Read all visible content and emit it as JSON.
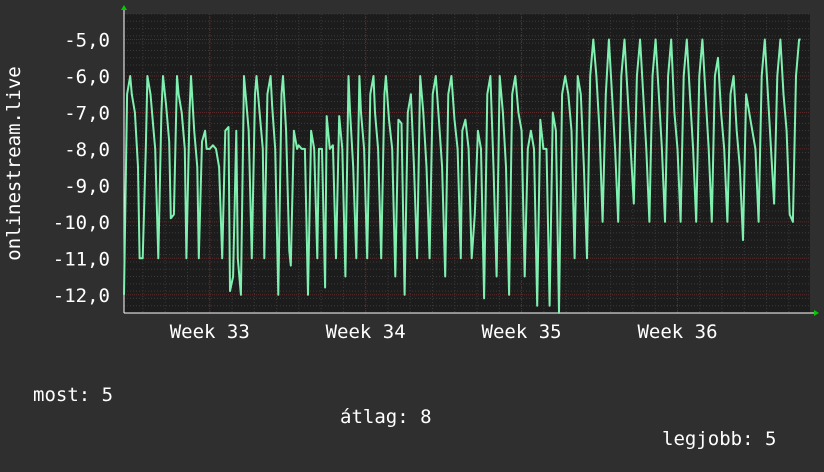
{
  "chart_data": {
    "type": "line",
    "ylabel": "onlinestream.live",
    "ylim": [
      -12.5,
      -4.3
    ],
    "yticks": [
      -12,
      -11,
      -10,
      -9,
      -8,
      -7,
      -6,
      -5
    ],
    "ytick_labels": [
      "-12,0",
      "-11,0",
      "-10,0",
      "-9,0",
      "-8,0",
      "-7,0",
      "-6,0",
      "-5,0"
    ],
    "xlim": [
      32.45,
      36.85
    ],
    "xticks": [
      33,
      34,
      35,
      36
    ],
    "xtick_labels": [
      "Week 33",
      "Week 34",
      "Week 35",
      "Week 36"
    ],
    "grid": true,
    "colors": {
      "background": "#2f2f2f",
      "plot_area": "#1c1c1c",
      "line": "#80f0b0",
      "grid_major": "#5a2a2a",
      "grid_minor": "#3a3a3a",
      "axis": "#ffffff",
      "arrow": "#00cc00"
    },
    "series": [
      {
        "points": [
          [
            32.45,
            -12.0
          ],
          [
            32.47,
            -6.5
          ],
          [
            32.49,
            -6.0
          ],
          [
            32.5,
            -6.5
          ],
          [
            32.52,
            -7.0
          ],
          [
            32.54,
            -8.5
          ],
          [
            32.55,
            -11.0
          ],
          [
            32.57,
            -11.0
          ],
          [
            32.59,
            -8.0
          ],
          [
            32.6,
            -6.0
          ],
          [
            32.62,
            -6.5
          ],
          [
            32.64,
            -7.5
          ],
          [
            32.65,
            -8.0
          ],
          [
            32.67,
            -11.0
          ],
          [
            32.69,
            -7.0
          ],
          [
            32.7,
            -6.0
          ],
          [
            32.72,
            -6.8
          ],
          [
            32.74,
            -7.8
          ],
          [
            32.75,
            -9.9
          ],
          [
            32.77,
            -9.8
          ],
          [
            32.79,
            -6.0
          ],
          [
            32.8,
            -6.5
          ],
          [
            32.82,
            -7.0
          ],
          [
            32.84,
            -8.0
          ],
          [
            32.85,
            -11.0
          ],
          [
            32.87,
            -7.0
          ],
          [
            32.88,
            -6.0
          ],
          [
            32.9,
            -7.5
          ],
          [
            32.92,
            -8.5
          ],
          [
            32.93,
            -11.0
          ],
          [
            32.95,
            -7.8
          ],
          [
            32.97,
            -7.5
          ],
          [
            32.98,
            -8.0
          ],
          [
            33.0,
            -8.0
          ],
          [
            33.02,
            -7.9
          ],
          [
            33.04,
            -8.0
          ],
          [
            33.06,
            -8.5
          ],
          [
            33.08,
            -11.0
          ],
          [
            33.1,
            -7.5
          ],
          [
            33.12,
            -7.4
          ],
          [
            33.13,
            -11.9
          ],
          [
            33.15,
            -11.5
          ],
          [
            33.17,
            -7.5
          ],
          [
            33.18,
            -11.0
          ],
          [
            33.2,
            -12.0
          ],
          [
            33.22,
            -6.0
          ],
          [
            33.23,
            -6.5
          ],
          [
            33.25,
            -7.5
          ],
          [
            33.27,
            -11.0
          ],
          [
            33.29,
            -6.5
          ],
          [
            33.3,
            -6.0
          ],
          [
            33.32,
            -7.0
          ],
          [
            33.34,
            -8.0
          ],
          [
            33.35,
            -11.0
          ],
          [
            33.37,
            -6.5
          ],
          [
            33.39,
            -6.0
          ],
          [
            33.4,
            -6.8
          ],
          [
            33.42,
            -8.0
          ],
          [
            33.44,
            -12.0
          ],
          [
            33.46,
            -6.5
          ],
          [
            33.47,
            -6.0
          ],
          [
            33.49,
            -7.5
          ],
          [
            33.51,
            -10.8
          ],
          [
            33.52,
            -11.2
          ],
          [
            33.54,
            -7.5
          ],
          [
            33.56,
            -8.0
          ],
          [
            33.57,
            -7.9
          ],
          [
            33.59,
            -8.0
          ],
          [
            33.61,
            -8.0
          ],
          [
            33.63,
            -12.0
          ],
          [
            33.65,
            -7.5
          ],
          [
            33.67,
            -8.0
          ],
          [
            33.69,
            -11.0
          ],
          [
            33.7,
            -8.0
          ],
          [
            33.72,
            -8.0
          ],
          [
            33.74,
            -11.8
          ],
          [
            33.75,
            -7.1
          ],
          [
            33.77,
            -8.0
          ],
          [
            33.79,
            -7.9
          ],
          [
            33.81,
            -11.0
          ],
          [
            33.83,
            -7.1
          ],
          [
            33.85,
            -8.0
          ],
          [
            33.87,
            -11.5
          ],
          [
            33.89,
            -6.0
          ],
          [
            33.9,
            -7.0
          ],
          [
            33.92,
            -8.5
          ],
          [
            33.94,
            -11.0
          ],
          [
            33.96,
            -6.0
          ],
          [
            33.97,
            -7.0
          ],
          [
            33.99,
            -8.0
          ],
          [
            34.01,
            -11.0
          ],
          [
            34.03,
            -6.5
          ],
          [
            34.05,
            -6.0
          ],
          [
            34.06,
            -7.0
          ],
          [
            34.08,
            -8.0
          ],
          [
            34.1,
            -11.0
          ],
          [
            34.12,
            -6.5
          ],
          [
            34.13,
            -6.0
          ],
          [
            34.15,
            -7.2
          ],
          [
            34.17,
            -8.0
          ],
          [
            34.19,
            -11.5
          ],
          [
            34.21,
            -7.2
          ],
          [
            34.23,
            -7.3
          ],
          [
            34.25,
            -12.0
          ],
          [
            34.27,
            -7.0
          ],
          [
            34.29,
            -6.5
          ],
          [
            34.31,
            -8.5
          ],
          [
            34.33,
            -11.0
          ],
          [
            34.35,
            -6.0
          ],
          [
            34.37,
            -7.0
          ],
          [
            34.39,
            -8.5
          ],
          [
            34.41,
            -11.0
          ],
          [
            34.43,
            -6.5
          ],
          [
            34.45,
            -6.0
          ],
          [
            34.47,
            -7.2
          ],
          [
            34.49,
            -8.5
          ],
          [
            34.51,
            -11.5
          ],
          [
            34.53,
            -6.5
          ],
          [
            34.55,
            -6.0
          ],
          [
            34.57,
            -7.2
          ],
          [
            34.59,
            -8.0
          ],
          [
            34.61,
            -11.0
          ],
          [
            34.62,
            -7.5
          ],
          [
            34.64,
            -7.2
          ],
          [
            34.66,
            -8.0
          ],
          [
            34.68,
            -11.0
          ],
          [
            34.7,
            -9.8
          ],
          [
            34.72,
            -7.5
          ],
          [
            34.74,
            -8.0
          ],
          [
            34.76,
            -12.1
          ],
          [
            34.78,
            -6.5
          ],
          [
            34.8,
            -6.0
          ],
          [
            34.82,
            -8.5
          ],
          [
            34.84,
            -11.5
          ],
          [
            34.86,
            -6.0
          ],
          [
            34.88,
            -7.0
          ],
          [
            34.9,
            -8.5
          ],
          [
            34.92,
            -12.0
          ],
          [
            34.94,
            -6.5
          ],
          [
            34.96,
            -6.0
          ],
          [
            34.98,
            -7.0
          ],
          [
            35.0,
            -7.5
          ],
          [
            35.02,
            -11.5
          ],
          [
            35.04,
            -8.0
          ],
          [
            35.06,
            -7.5
          ],
          [
            35.08,
            -8.0
          ],
          [
            35.1,
            -12.3
          ],
          [
            35.12,
            -7.2
          ],
          [
            35.14,
            -8.0
          ],
          [
            35.16,
            -8.0
          ],
          [
            35.18,
            -12.3
          ],
          [
            35.2,
            -7.0
          ],
          [
            35.22,
            -7.5
          ],
          [
            35.24,
            -12.5
          ],
          [
            35.26,
            -6.5
          ],
          [
            35.28,
            -6.0
          ],
          [
            35.3,
            -6.5
          ],
          [
            35.32,
            -7.5
          ],
          [
            35.34,
            -11.0
          ],
          [
            35.36,
            -6.0
          ],
          [
            35.38,
            -6.5
          ],
          [
            35.4,
            -8.5
          ],
          [
            35.42,
            -11.0
          ],
          [
            35.44,
            -6.0
          ],
          [
            35.46,
            -5.0
          ],
          [
            35.48,
            -6.0
          ],
          [
            35.5,
            -7.5
          ],
          [
            35.52,
            -10.0
          ],
          [
            35.54,
            -6.5
          ],
          [
            35.56,
            -5.0
          ],
          [
            35.58,
            -6.5
          ],
          [
            35.6,
            -8.0
          ],
          [
            35.62,
            -10.0
          ],
          [
            35.64,
            -6.0
          ],
          [
            35.66,
            -5.0
          ],
          [
            35.68,
            -6.5
          ],
          [
            35.7,
            -8.0
          ],
          [
            35.72,
            -9.5
          ],
          [
            35.74,
            -6.0
          ],
          [
            35.76,
            -5.0
          ],
          [
            35.78,
            -6.5
          ],
          [
            35.8,
            -8.0
          ],
          [
            35.82,
            -10.0
          ],
          [
            35.84,
            -6.0
          ],
          [
            35.86,
            -5.0
          ],
          [
            35.88,
            -6.5
          ],
          [
            35.9,
            -8.0
          ],
          [
            35.92,
            -10.0
          ],
          [
            35.94,
            -6.0
          ],
          [
            35.96,
            -5.0
          ],
          [
            35.98,
            -7.0
          ],
          [
            36.0,
            -8.0
          ],
          [
            36.02,
            -10.0
          ],
          [
            36.04,
            -6.0
          ],
          [
            36.06,
            -5.0
          ],
          [
            36.08,
            -6.5
          ],
          [
            36.1,
            -8.0
          ],
          [
            36.12,
            -10.0
          ],
          [
            36.14,
            -6.0
          ],
          [
            36.16,
            -5.0
          ],
          [
            36.18,
            -6.5
          ],
          [
            36.2,
            -8.0
          ],
          [
            36.22,
            -10.0
          ],
          [
            36.24,
            -6.0
          ],
          [
            36.26,
            -5.5
          ],
          [
            36.28,
            -7.0
          ],
          [
            36.3,
            -8.0
          ],
          [
            36.32,
            -10.0
          ],
          [
            36.34,
            -6.5
          ],
          [
            36.36,
            -6.0
          ],
          [
            36.38,
            -7.5
          ],
          [
            36.4,
            -8.5
          ],
          [
            36.42,
            -10.5
          ],
          [
            36.44,
            -6.5
          ],
          [
            36.46,
            -7.0
          ],
          [
            36.48,
            -7.5
          ],
          [
            36.5,
            -8.0
          ],
          [
            36.52,
            -10.0
          ],
          [
            36.54,
            -6.0
          ],
          [
            36.56,
            -5.0
          ],
          [
            36.58,
            -6.5
          ],
          [
            36.6,
            -8.0
          ],
          [
            36.62,
            -9.5
          ],
          [
            36.64,
            -6.0
          ],
          [
            36.66,
            -5.0
          ],
          [
            36.68,
            -6.5
          ],
          [
            36.7,
            -7.5
          ],
          [
            36.72,
            -9.8
          ],
          [
            36.74,
            -10.0
          ],
          [
            36.76,
            -6.0
          ],
          [
            36.78,
            -5.0
          ],
          [
            36.79,
            -5.0
          ]
        ]
      }
    ]
  },
  "stats": {
    "current": "most: 5",
    "average": "átlag: 8",
    "best": "legjobb: 5"
  }
}
